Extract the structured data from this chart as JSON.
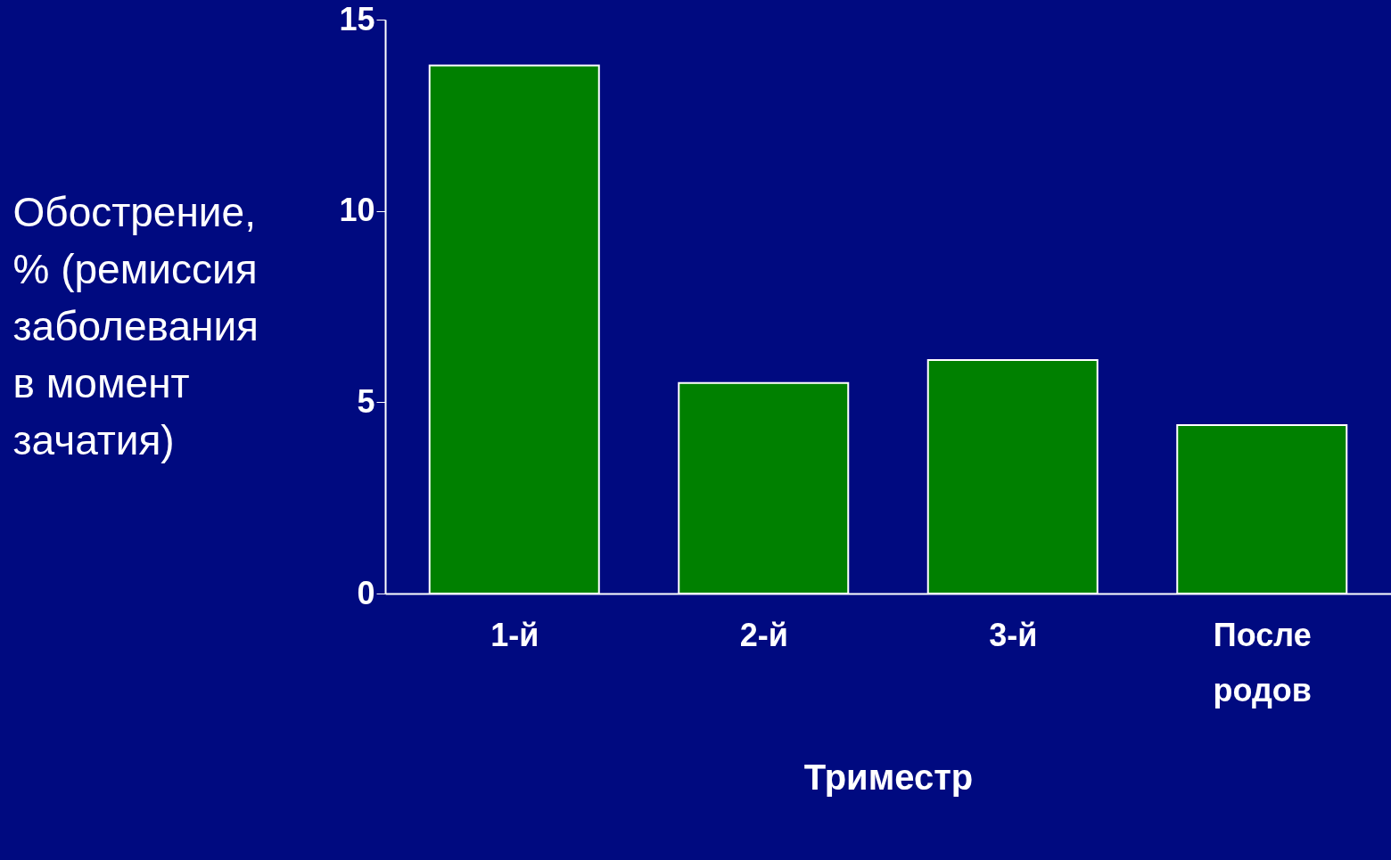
{
  "chart_data": {
    "type": "bar",
    "ylabel": "Обострение, % (ремиссия заболевания в момент зачатия)",
    "xlabel": "Триместр",
    "categories": [
      "1-й",
      "2-й",
      "3-й",
      "После родов"
    ],
    "values": [
      13.8,
      5.5,
      6.1,
      4.4
    ],
    "color": "#008000",
    "ylim": [
      0,
      15
    ],
    "yticks": [
      0,
      5,
      10,
      15
    ],
    "grid": false
  }
}
